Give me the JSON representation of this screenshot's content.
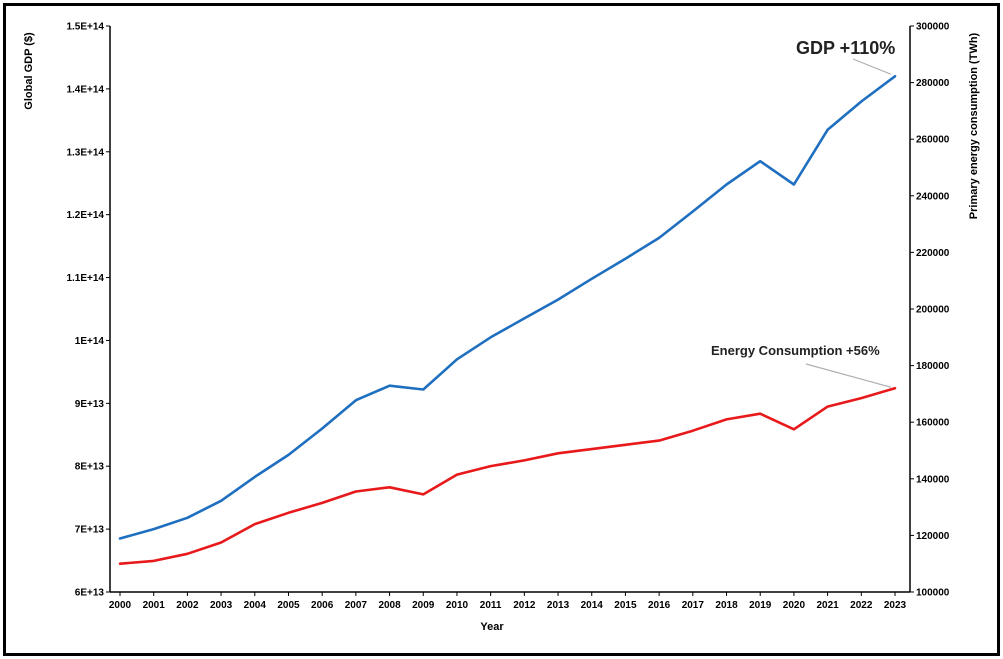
{
  "chart_data": {
    "type": "line",
    "xlabel": "Year",
    "ylabel_left": "Global GDP ($)",
    "ylabel_right": "Primary energy consumption (TWh)",
    "x": [
      "2000",
      "2001",
      "2002",
      "2003",
      "2004",
      "2005",
      "2006",
      "2007",
      "2008",
      "2009",
      "2010",
      "2011",
      "2012",
      "2013",
      "2014",
      "2015",
      "2016",
      "2017",
      "2018",
      "2019",
      "2020",
      "2021",
      "2022",
      "2023"
    ],
    "left_axis": {
      "min": 60000000000000.0,
      "max": 150000000000000.0,
      "ticks": [
        60000000000000.0,
        70000000000000.0,
        80000000000000.0,
        90000000000000.0,
        100000000000000.0,
        110000000000000.0,
        120000000000000.0,
        130000000000000.0,
        140000000000000.0,
        150000000000000.0
      ],
      "tick_labels": [
        "6E+13",
        "7E+13",
        "8E+13",
        "9E+13",
        "1E+14",
        "1.1E+14",
        "1.2E+14",
        "1.3E+14",
        "1.4E+14",
        "1.5E+14"
      ]
    },
    "right_axis": {
      "min": 100000,
      "max": 300000,
      "ticks": [
        100000,
        120000,
        140000,
        160000,
        180000,
        200000,
        220000,
        240000,
        260000,
        280000,
        300000
      ],
      "tick_labels": [
        "100000",
        "120000",
        "140000",
        "160000",
        "180000",
        "200000",
        "220000",
        "240000",
        "260000",
        "280000",
        "300000"
      ]
    },
    "series": [
      {
        "axis": "left",
        "color": "#1f6fc0",
        "values": [
          68500000000000.0,
          70000000000000.0,
          71800000000000.0,
          74500000000000.0,
          78300000000000.0,
          81800000000000.0,
          86000000000000.0,
          90500000000000.0,
          92800000000000.0,
          92200000000000.0,
          97000000000000.0,
          100500000000000.0,
          103500000000000.0,
          106500000000000.0,
          109800000000000.0,
          113000000000000.0,
          116300000000000.0,
          120500000000000.0,
          124800000000000.0,
          128500000000000.0,
          124800000000000.0,
          133500000000000.0,
          138000000000000.0,
          142000000000000.0
        ]
      },
      {
        "axis": "right",
        "color": "#e8191a",
        "values": [
          110000,
          111000,
          113500,
          117500,
          124000,
          128000,
          131500,
          135500,
          137000,
          134500,
          141500,
          144500,
          146500,
          149000,
          150500,
          152000,
          153500,
          157000,
          161000,
          163000,
          157500,
          165500,
          168500,
          172000
        ]
      }
    ],
    "annotations": [
      {
        "text": "GDP +110%",
        "series": 0
      },
      {
        "text": "Energy Consumption +56%",
        "series": 1
      }
    ],
    "grid": false
  }
}
